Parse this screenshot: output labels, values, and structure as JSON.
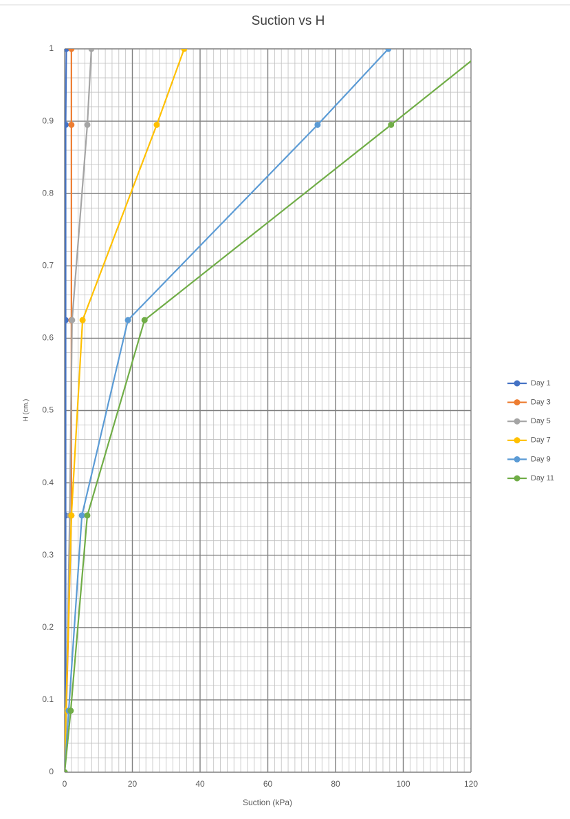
{
  "chart_data": {
    "type": "line",
    "title": "Suction vs H",
    "x_label": "Suction (kPa)",
    "y_label": "H (cm.)",
    "xlim": [
      0,
      120
    ],
    "ylim": [
      0,
      1
    ],
    "xticks": [
      0,
      20,
      40,
      60,
      80,
      100,
      120
    ],
    "yticks": [
      0,
      0.1,
      0.2,
      0.3,
      0.4,
      0.5,
      0.6,
      0.7,
      0.8,
      0.9,
      1
    ],
    "grid": true,
    "legend": "right",
    "series": [
      {
        "name": "Day 1",
        "color": "#4472c4",
        "x": [
          0,
          0.3,
          0.3,
          0.3,
          0.3,
          0.5
        ],
        "values": [
          0,
          0.085,
          0.355,
          0.625,
          0.895,
          1
        ]
      },
      {
        "name": "Day 3",
        "color": "#ed7d31",
        "x": [
          0,
          0.5,
          2,
          2,
          2,
          2
        ],
        "values": [
          0,
          0.085,
          0.355,
          0.625,
          0.895,
          1
        ]
      },
      {
        "name": "Day 5",
        "color": "#a5a5a5",
        "x": [
          0,
          0.5,
          1.5,
          2.2,
          6.7,
          7.9
        ],
        "values": [
          0,
          0.085,
          0.355,
          0.625,
          0.895,
          1
        ]
      },
      {
        "name": "Day 7",
        "color": "#ffc000",
        "x": [
          0,
          0.4,
          2,
          5.3,
          27.2,
          35.3
        ],
        "values": [
          0,
          0.085,
          0.355,
          0.625,
          0.895,
          1
        ]
      },
      {
        "name": "Day 9",
        "color": "#5b9bd5",
        "x": [
          0,
          1.2,
          5.1,
          18.7,
          74.7,
          95.6
        ],
        "values": [
          0,
          0.085,
          0.355,
          0.625,
          0.895,
          1
        ]
      },
      {
        "name": "Day 11",
        "color": "#70ad47",
        "x": [
          0,
          1.8,
          6.7,
          23.6,
          96.4,
          124.5
        ],
        "values": [
          0,
          0.085,
          0.355,
          0.625,
          0.895,
          1
        ]
      }
    ]
  }
}
